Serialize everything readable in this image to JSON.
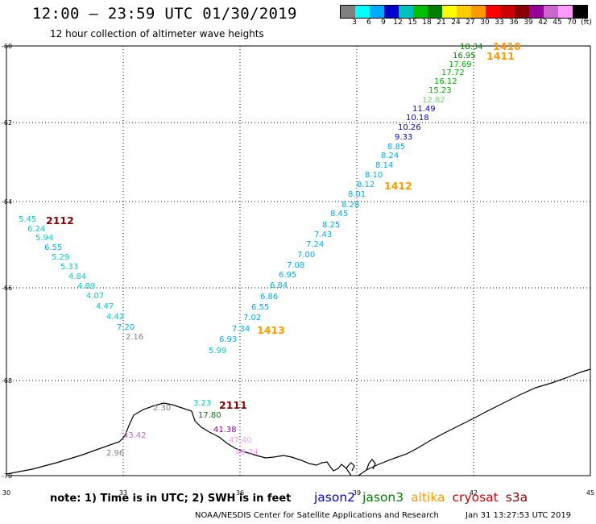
{
  "title": "12:00 – 23:59 UTC 01/30/2019",
  "subtitle": "12 hour collection of altimeter wave heights",
  "scale": {
    "labels": [
      "3",
      "6",
      "9",
      "12",
      "15",
      "18",
      "21",
      "24",
      "27",
      "30",
      "33",
      "36",
      "39",
      "42",
      "45",
      "70",
      "(ft)"
    ],
    "colors": [
      "#808080",
      "#00ffff",
      "#00aaff",
      "#0000cc",
      "#00c0c0",
      "#00c000",
      "#008000",
      "#ffff00",
      "#ffcc00",
      "#ff9900",
      "#ff0000",
      "#cc0000",
      "#880000",
      "#990099",
      "#cc66cc",
      "#ff99ff",
      "#000000"
    ]
  },
  "axes": {
    "x_ticks": [
      "30",
      "33",
      "36",
      "39",
      "42",
      "45"
    ],
    "y_ticks": [
      "-60",
      "-62",
      "-64",
      "-66",
      "-68",
      "-70"
    ]
  },
  "colors": {
    "jason2": "#0000cc",
    "jason3": "#008000",
    "altika": "#ff9900",
    "cryosat": "#cc0000",
    "s3a": "#880000",
    "coast": "#000000",
    "grid": "#000000"
  },
  "points": [
    {
      "v": "18.34",
      "c": "#008000"
    },
    {
      "v": "16.95",
      "c": "#008000"
    },
    {
      "v": "17.69",
      "c": "#00b000"
    },
    {
      "v": "17.72",
      "c": "#00b000"
    },
    {
      "v": "16.12",
      "c": "#00b000"
    },
    {
      "v": "15.23",
      "c": "#00b000"
    },
    {
      "v": "12.82",
      "c": "#66dd66"
    },
    {
      "v": "11.49",
      "c": "#0000cc"
    },
    {
      "v": "10.18",
      "c": "#0000cc"
    },
    {
      "v": "10.26",
      "c": "#0000cc"
    },
    {
      "v": "9.33",
      "c": "#0000cc"
    },
    {
      "v": "8.85",
      "c": "#00aaff"
    },
    {
      "v": "8.24",
      "c": "#00aaff"
    },
    {
      "v": "8.14",
      "c": "#00aaff"
    },
    {
      "v": "8.10",
      "c": "#00aaff"
    },
    {
      "v": "8.12",
      "c": "#00aaff"
    },
    {
      "v": "8.01",
      "c": "#00aaff"
    },
    {
      "v": "8.28",
      "c": "#00aaff"
    },
    {
      "v": "8.45",
      "c": "#00aaff"
    },
    {
      "v": "8.25",
      "c": "#00aaff"
    },
    {
      "v": "7.43",
      "c": "#00aaff"
    },
    {
      "v": "7.24",
      "c": "#00aaff"
    },
    {
      "v": "7.00",
      "c": "#00aaff"
    },
    {
      "v": "7.08",
      "c": "#00aaff"
    },
    {
      "v": "6.95",
      "c": "#00aaff"
    },
    {
      "v": "6.84",
      "c": "#00aaff"
    },
    {
      "v": "6.86",
      "c": "#00aaff"
    },
    {
      "v": "6.55",
      "c": "#00aaff"
    },
    {
      "v": "7.02",
      "c": "#00aaff"
    },
    {
      "v": "7.34",
      "c": "#00aaff"
    },
    {
      "v": "6.93",
      "c": "#00aaff"
    },
    {
      "v": "5.99",
      "c": "#00cccc"
    },
    {
      "v": "5.45",
      "c": "#00cccc"
    },
    {
      "v": "6.24",
      "c": "#00cccc"
    },
    {
      "v": "5.94",
      "c": "#00cccc"
    },
    {
      "v": "6.55",
      "c": "#00aaff"
    },
    {
      "v": "5.29",
      "c": "#00cccc"
    },
    {
      "v": "5.33",
      "c": "#00cccc"
    },
    {
      "v": "4.84",
      "c": "#00cccc"
    },
    {
      "v": "4.89",
      "c": "#00cccc"
    },
    {
      "v": "4.07",
      "c": "#00cccc"
    },
    {
      "v": "4.47",
      "c": "#00cccc"
    },
    {
      "v": "4.42",
      "c": "#00cccc"
    },
    {
      "v": "7.20",
      "c": "#00aaff"
    },
    {
      "v": "2.16",
      "c": "#808080"
    },
    {
      "v": "2.30",
      "c": "#808080"
    },
    {
      "v": "3.23",
      "c": "#00cccc"
    },
    {
      "v": "17.80",
      "c": "#008000"
    },
    {
      "v": "41.38",
      "c": "#990099"
    },
    {
      "v": "43.42",
      "c": "#cc66cc"
    },
    {
      "v": "2.96",
      "c": "#808080"
    },
    {
      "v": "47.40",
      "c": "#ff99ff"
    },
    {
      "v": "46.24",
      "c": "#ff99ff"
    }
  ],
  "pass_ids": [
    {
      "v": "1410",
      "c": "#ff9900"
    },
    {
      "v": "1411",
      "c": "#ff9900"
    },
    {
      "v": "1412",
      "c": "#ff9900"
    },
    {
      "v": "1413",
      "c": "#ff9900"
    },
    {
      "v": "2112",
      "c": "#880000"
    },
    {
      "v": "2111",
      "c": "#880000"
    }
  ],
  "footer": {
    "note": "note:  1) Time is in UTC;  2) SWH is in feet",
    "legend": [
      {
        "name": "jason2",
        "c": "#0000cc"
      },
      {
        "name": "jason3",
        "c": "#008000"
      },
      {
        "name": "altika",
        "c": "#ff9900"
      },
      {
        "name": "cryosat",
        "c": "#cc0000"
      },
      {
        "name": "s3a",
        "c": "#880000"
      }
    ],
    "credit": "NOAA/NESDIS Center for Satellite Applications and Research",
    "timestamp": "Jan 31 13:27:53 UTC 2019"
  }
}
